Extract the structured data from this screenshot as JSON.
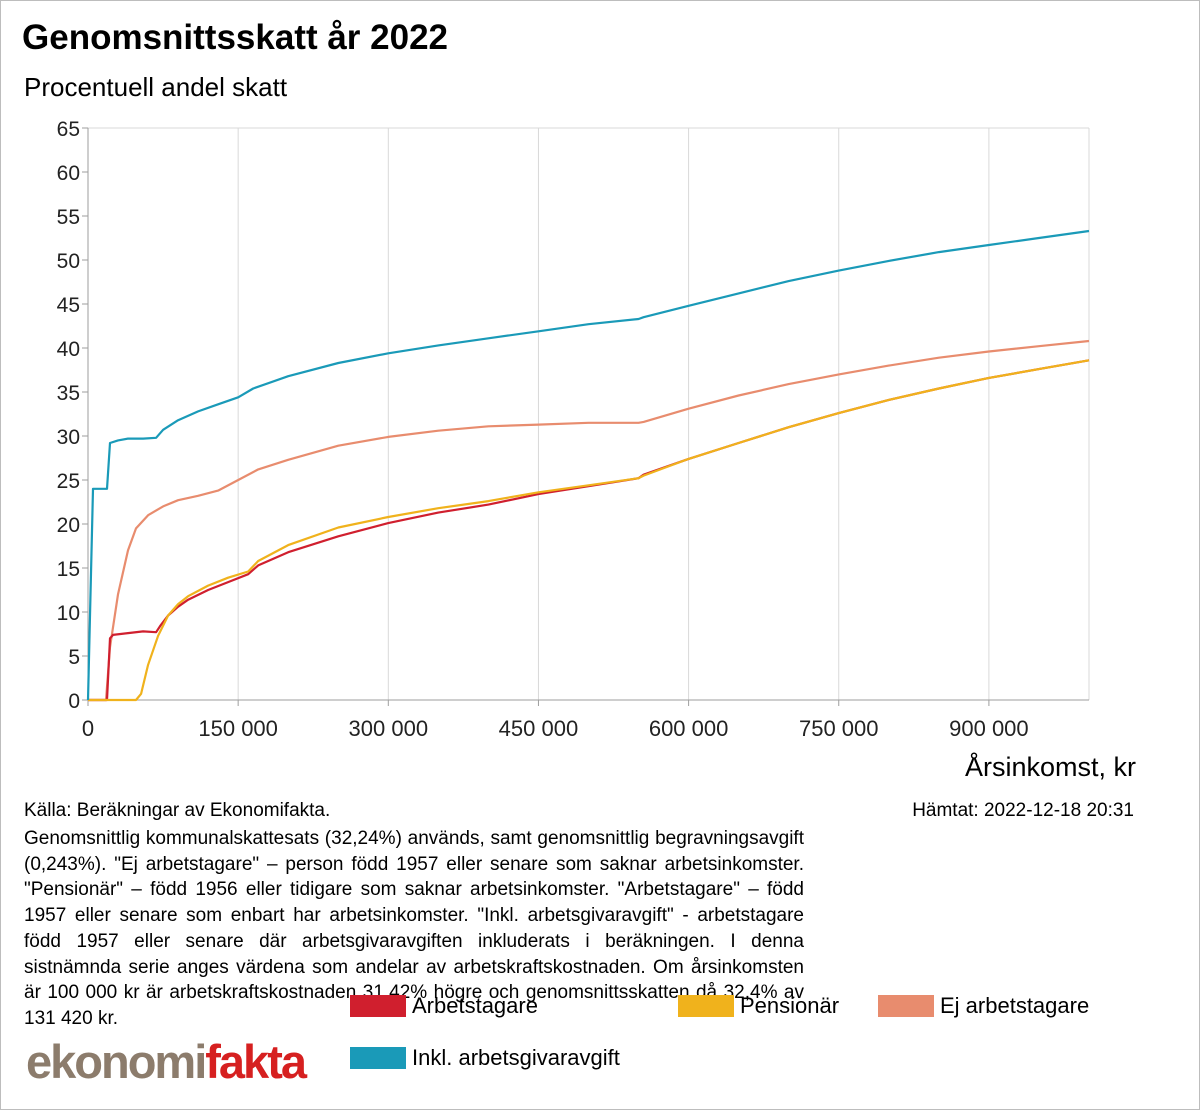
{
  "title": "Genomsnittsskatt år 2022",
  "subtitle": "Procentuell andel skatt",
  "source": "Källa: Beräkningar av Ekonomifakta.",
  "fetched": "Hämtat: 2022-12-18 20:31",
  "note": "Genomsnittlig kommunalskattesats (32,24%) används, samt genomsnittlig begravningsavgift (0,243%). \"Ej arbetstagare\" – person född 1957 eller senare som saknar arbetsinkomster. \"Pensionär\" – född 1956 eller tidigare som saknar arbetsinkomster. \"Arbetstagare\" – född 1957 eller senare som enbart har arbetsinkomster. \"Inkl. arbetsgivaravgift\" - arbetstagare född 1957 eller senare där arbetsgivaravgiften inkluderats i beräkningen. I denna sistnämnda serie anges värdena som andelar av arbetskraftskostnaden. Om årsinkomsten är 100 000 kr är arbetskraftskostnaden 31,42% högre och genomsnittsskatten då 32,4% av 131 420 kr.",
  "logo": {
    "part1": "ekonomi",
    "part2": "fakta"
  },
  "chart_data": {
    "type": "line",
    "title": "Genomsnittsskatt år 2022",
    "subtitle": "Procentuell andel skatt",
    "xlabel": "Årsinkomst, kr",
    "ylabel": "",
    "xlim": [
      0,
      1000000
    ],
    "ylim": [
      0,
      65
    ],
    "x_ticks": [
      0,
      150000,
      300000,
      450000,
      600000,
      750000,
      900000
    ],
    "x_tick_labels": [
      "0",
      "150 000",
      "300 000",
      "450 000",
      "600 000",
      "750 000",
      "900 000"
    ],
    "y_ticks": [
      0,
      5,
      10,
      15,
      20,
      25,
      30,
      35,
      40,
      45,
      50,
      55,
      60,
      65
    ],
    "grid": "vertical",
    "legend": "bottom",
    "series": [
      {
        "name": "Arbetstagare",
        "color": "#d01f2e",
        "points": [
          [
            0,
            0
          ],
          [
            19000,
            0
          ],
          [
            22000,
            7
          ],
          [
            25000,
            7.4
          ],
          [
            40000,
            7.6
          ],
          [
            55000,
            7.8
          ],
          [
            68000,
            7.7
          ],
          [
            72000,
            8.4
          ],
          [
            80000,
            9.6
          ],
          [
            90000,
            10.6
          ],
          [
            100000,
            11.4
          ],
          [
            120000,
            12.5
          ],
          [
            140000,
            13.4
          ],
          [
            160000,
            14.3
          ],
          [
            170000,
            15.3
          ],
          [
            200000,
            16.8
          ],
          [
            250000,
            18.6
          ],
          [
            300000,
            20.1
          ],
          [
            350000,
            21.3
          ],
          [
            400000,
            22.2
          ],
          [
            450000,
            23.4
          ],
          [
            500000,
            24.3
          ],
          [
            550000,
            25.2
          ],
          [
            555000,
            25.6
          ],
          [
            600000,
            27.4
          ],
          [
            650000,
            29.2
          ],
          [
            700000,
            31.0
          ],
          [
            750000,
            32.6
          ],
          [
            800000,
            34.1
          ],
          [
            850000,
            35.4
          ],
          [
            900000,
            36.6
          ],
          [
            950000,
            37.6
          ],
          [
            1000000,
            38.6
          ]
        ]
      },
      {
        "name": "Pensionär",
        "color": "#f0b21c",
        "points": [
          [
            0,
            0
          ],
          [
            48000,
            0
          ],
          [
            53000,
            0.7
          ],
          [
            60000,
            4
          ],
          [
            70000,
            7.3
          ],
          [
            80000,
            9.6
          ],
          [
            90000,
            10.9
          ],
          [
            100000,
            11.8
          ],
          [
            120000,
            13
          ],
          [
            140000,
            13.9
          ],
          [
            160000,
            14.6
          ],
          [
            170000,
            15.8
          ],
          [
            200000,
            17.6
          ],
          [
            250000,
            19.6
          ],
          [
            300000,
            20.8
          ],
          [
            350000,
            21.8
          ],
          [
            400000,
            22.6
          ],
          [
            450000,
            23.6
          ],
          [
            500000,
            24.4
          ],
          [
            550000,
            25.2
          ],
          [
            555000,
            25.5
          ],
          [
            600000,
            27.4
          ],
          [
            650000,
            29.2
          ],
          [
            700000,
            31.0
          ],
          [
            750000,
            32.6
          ],
          [
            800000,
            34.1
          ],
          [
            850000,
            35.4
          ],
          [
            900000,
            36.6
          ],
          [
            950000,
            37.6
          ],
          [
            1000000,
            38.6
          ]
        ]
      },
      {
        "name": "Ej arbetstagare",
        "color": "#e88c6e",
        "points": [
          [
            0,
            0
          ],
          [
            18000,
            0
          ],
          [
            22000,
            6
          ],
          [
            30000,
            12
          ],
          [
            40000,
            17
          ],
          [
            48000,
            19.5
          ],
          [
            60000,
            21
          ],
          [
            75000,
            22
          ],
          [
            90000,
            22.7
          ],
          [
            110000,
            23.2
          ],
          [
            130000,
            23.8
          ],
          [
            150000,
            25
          ],
          [
            170000,
            26.2
          ],
          [
            200000,
            27.3
          ],
          [
            250000,
            28.9
          ],
          [
            300000,
            29.9
          ],
          [
            350000,
            30.6
          ],
          [
            400000,
            31.1
          ],
          [
            450000,
            31.3
          ],
          [
            500000,
            31.5
          ],
          [
            550000,
            31.5
          ],
          [
            555000,
            31.6
          ],
          [
            600000,
            33.1
          ],
          [
            650000,
            34.6
          ],
          [
            700000,
            35.9
          ],
          [
            750000,
            37
          ],
          [
            800000,
            38
          ],
          [
            850000,
            38.9
          ],
          [
            900000,
            39.6
          ],
          [
            950000,
            40.2
          ],
          [
            1000000,
            40.8
          ]
        ]
      },
      {
        "name": "Inkl. arbetsgivaravgift",
        "color": "#1a9ab8",
        "points": [
          [
            0,
            0
          ],
          [
            5000,
            24
          ],
          [
            19000,
            24
          ],
          [
            22000,
            29.2
          ],
          [
            30000,
            29.5
          ],
          [
            40000,
            29.7
          ],
          [
            55000,
            29.7
          ],
          [
            68000,
            29.8
          ],
          [
            75000,
            30.7
          ],
          [
            90000,
            31.8
          ],
          [
            110000,
            32.8
          ],
          [
            130000,
            33.6
          ],
          [
            150000,
            34.4
          ],
          [
            165000,
            35.4
          ],
          [
            200000,
            36.8
          ],
          [
            250000,
            38.3
          ],
          [
            300000,
            39.4
          ],
          [
            350000,
            40.3
          ],
          [
            400000,
            41.1
          ],
          [
            450000,
            41.9
          ],
          [
            500000,
            42.7
          ],
          [
            550000,
            43.3
          ],
          [
            555000,
            43.5
          ],
          [
            600000,
            44.8
          ],
          [
            650000,
            46.2
          ],
          [
            700000,
            47.6
          ],
          [
            750000,
            48.8
          ],
          [
            800000,
            49.9
          ],
          [
            850000,
            50.9
          ],
          [
            900000,
            51.7
          ],
          [
            950000,
            52.5
          ],
          [
            1000000,
            53.3
          ]
        ]
      }
    ]
  }
}
